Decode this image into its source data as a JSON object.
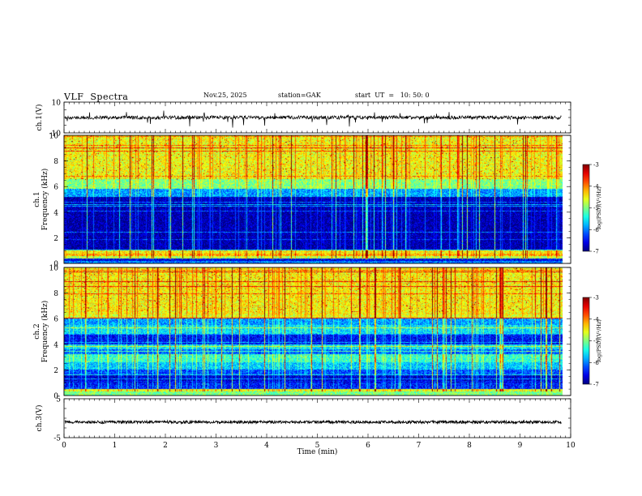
{
  "header": {
    "title": "VLF  Spectra",
    "date": "Nov.25, 2025",
    "station": "station=GAK",
    "start_ut": "start  UT  =   10: 50: 0"
  },
  "chart_data": [
    {
      "type": "line",
      "name": "ch1-waveform",
      "ylabel": "ch.1(V)",
      "ylim": [
        -10,
        10
      ],
      "yticks": [
        "10",
        "-10"
      ],
      "xlim": [
        0,
        10
      ],
      "trace": {
        "baseline": 0,
        "noise_amplitude": 1.2,
        "spike_depth": 6,
        "x_end": 9.82
      }
    },
    {
      "type": "heatmap",
      "name": "ch1-spectrogram",
      "ylabel": "ch.1\nFrequency (kHz)",
      "ylim": [
        0,
        10
      ],
      "yticks": [
        "0",
        "2",
        "4",
        "6",
        "8",
        "10"
      ],
      "xlim": [
        0,
        10
      ],
      "x_end": 9.82,
      "colorbar": {
        "label": "log(PSD)(V²/Hz)",
        "range": [
          -7,
          -3
        ],
        "ticks": [
          "-3",
          "-4",
          "-5",
          "-6",
          "-7"
        ]
      },
      "bands_khz": [
        {
          "from": 0.0,
          "to": 0.2,
          "level": -6.0
        },
        {
          "from": 0.2,
          "to": 0.4,
          "level": -6.6
        },
        {
          "from": 0.4,
          "to": 0.55,
          "level": -4.8
        },
        {
          "from": 0.55,
          "to": 0.75,
          "level": -4.2
        },
        {
          "from": 0.75,
          "to": 1.0,
          "level": -4.5
        },
        {
          "from": 1.0,
          "to": 1.1,
          "level": -5.6
        },
        {
          "from": 1.1,
          "to": 5.2,
          "level": -6.85
        },
        {
          "from": 5.2,
          "to": 5.8,
          "level": -5.9
        },
        {
          "from": 5.8,
          "to": 6.6,
          "level": -5.0
        },
        {
          "from": 6.6,
          "to": 10.0,
          "level": -4.55
        }
      ]
    },
    {
      "type": "heatmap",
      "name": "ch2-spectrogram",
      "ylabel": "ch.2\nFrequency (kHz)",
      "ylim": [
        0,
        10
      ],
      "yticks": [
        "0",
        "2",
        "4",
        "6",
        "8",
        "10"
      ],
      "xlim": [
        0,
        10
      ],
      "x_end": 9.82,
      "colorbar": {
        "label": "log(PSD)(V²/Hz)",
        "range": [
          -7,
          -3
        ],
        "ticks": [
          "-3",
          "-4",
          "-5",
          "-6",
          "-7"
        ]
      },
      "bands_khz": [
        {
          "from": 0.0,
          "to": 0.3,
          "level": -5.0
        },
        {
          "from": 0.3,
          "to": 0.5,
          "level": -4.6
        },
        {
          "from": 0.5,
          "to": 1.0,
          "level": -6.4
        },
        {
          "from": 1.0,
          "to": 1.6,
          "level": -6.7
        },
        {
          "from": 1.6,
          "to": 2.0,
          "level": -6.2
        },
        {
          "from": 2.0,
          "to": 2.6,
          "level": -5.7
        },
        {
          "from": 2.6,
          "to": 3.2,
          "level": -5.3
        },
        {
          "from": 3.2,
          "to": 3.6,
          "level": -6.1
        },
        {
          "from": 3.6,
          "to": 4.0,
          "level": -5.6
        },
        {
          "from": 4.0,
          "to": 4.8,
          "level": -6.5
        },
        {
          "from": 4.8,
          "to": 5.5,
          "level": -5.6
        },
        {
          "from": 5.5,
          "to": 6.0,
          "level": -5.9
        },
        {
          "from": 6.0,
          "to": 6.3,
          "level": -4.6
        },
        {
          "from": 6.3,
          "to": 10.0,
          "level": -4.5
        }
      ]
    },
    {
      "type": "line",
      "name": "ch3-waveform",
      "ylabel": "ch.3(V)",
      "ylim": [
        -5,
        5
      ],
      "yticks": [
        "5",
        "-5"
      ],
      "xlim": [
        0,
        10
      ],
      "trace": {
        "baseline": -1.0,
        "noise_amplitude": 0.35,
        "x_end": 9.82
      }
    }
  ],
  "x_axis": {
    "label": "Time  (min)",
    "ticks": [
      "0",
      "1",
      "2",
      "3",
      "4",
      "5",
      "6",
      "7",
      "8",
      "9",
      "10"
    ],
    "range": [
      0,
      10
    ]
  }
}
